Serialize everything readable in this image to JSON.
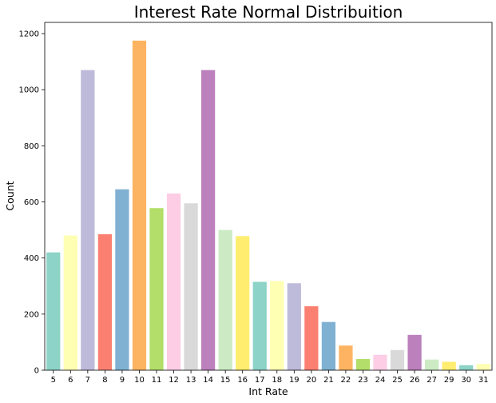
{
  "chart_data": {
    "type": "bar",
    "title": "Interest Rate Normal Distribuition",
    "xlabel": "Int Rate",
    "ylabel": "Count",
    "ylim": [
      0,
      1240
    ],
    "yticks": [
      0,
      200,
      400,
      600,
      800,
      1000,
      1200
    ],
    "grid": false,
    "legend": "none",
    "categories": [
      "5",
      "6",
      "7",
      "8",
      "9",
      "10",
      "11",
      "12",
      "13",
      "14",
      "15",
      "16",
      "17",
      "18",
      "19",
      "20",
      "21",
      "22",
      "23",
      "24",
      "25",
      "26",
      "27",
      "29",
      "30",
      "31"
    ],
    "values": [
      420,
      480,
      1070,
      485,
      645,
      1175,
      578,
      630,
      595,
      1070,
      500,
      478,
      315,
      318,
      310,
      228,
      172,
      88,
      40,
      55,
      72,
      126,
      38,
      30,
      18,
      22
    ],
    "colors": [
      "#8dd3c7",
      "#ffffb3",
      "#bebada",
      "#fb8072",
      "#80b1d3",
      "#fdb462",
      "#b3de69",
      "#fccde5",
      "#d9d9d9",
      "#bc80bd",
      "#ccebc5",
      "#ffed6f",
      "#8dd3c7",
      "#ffffb3",
      "#bebada",
      "#fb8072",
      "#80b1d3",
      "#fdb462",
      "#b3de69",
      "#fccde5",
      "#d9d9d9",
      "#bc80bd",
      "#ccebc5",
      "#ffed6f",
      "#8dd3c7",
      "#ffffb3"
    ]
  }
}
